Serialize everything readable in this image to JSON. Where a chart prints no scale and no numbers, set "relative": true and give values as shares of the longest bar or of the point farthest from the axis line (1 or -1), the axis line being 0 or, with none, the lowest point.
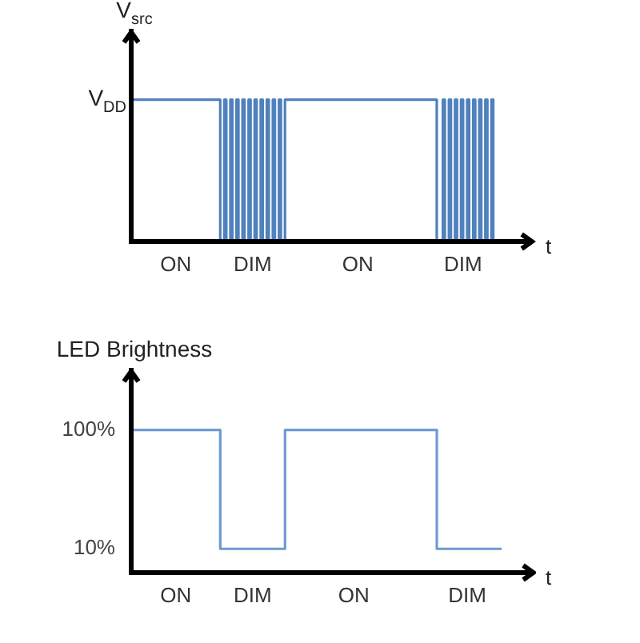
{
  "chart_data": [
    {
      "type": "step",
      "ylabel": "V$_{src}$",
      "xlabel": "t",
      "relative": true,
      "annotations": [
        "V$_{DD}$"
      ],
      "color": "#4f81bd",
      "categories": [
        null,
        null,
        null,
        null,
        null,
        null,
        null,
        null,
        null,
        null,
        null,
        null,
        null,
        null,
        null,
        null,
        null,
        null,
        null,
        null,
        null,
        null,
        "ON",
        null,
        null,
        null,
        null,
        null,
        null,
        null,
        null,
        null,
        null,
        null,
        null,
        null,
        null,
        null,
        null,
        null,
        null,
        null,
        null,
        null,
        null,
        null,
        null,
        null,
        null,
        null,
        null,
        null,
        null,
        null,
        null,
        null,
        null,
        null,
        null,
        null,
        "DIM",
        null,
        null,
        null,
        null,
        null,
        null,
        null,
        null,
        null,
        null,
        null,
        null,
        null,
        null,
        null,
        null,
        null,
        null,
        null,
        null,
        null,
        null,
        null,
        null,
        null,
        null,
        null,
        null,
        null,
        null,
        null,
        null,
        null,
        null,
        null,
        null,
        null,
        null,
        null,
        null,
        null,
        null,
        null,
        null,
        null,
        null,
        null,
        null,
        null,
        null,
        null,
        "ON",
        null,
        null,
        null,
        null,
        null,
        null,
        null,
        null,
        null,
        null,
        null,
        null,
        null,
        null,
        null,
        null,
        null,
        null,
        null,
        null,
        null,
        null,
        null,
        null,
        null,
        null,
        null,
        null,
        null,
        null,
        null,
        null,
        null,
        null,
        null,
        null,
        null,
        null,
        null,
        null,
        null,
        null,
        null,
        null,
        null,
        null,
        null,
        null,
        null,
        null,
        null,
        "DIM",
        null,
        null,
        null,
        null,
        null,
        null,
        null,
        null,
        null,
        null,
        null,
        null,
        null,
        null,
        null
      ],
      "values": [
        1,
        1,
        1,
        1,
        1,
        1,
        1,
        1,
        1,
        1,
        1,
        1,
        1,
        1,
        1,
        1,
        1,
        1,
        1,
        1,
        1,
        1,
        1,
        1,
        1,
        1,
        1,
        1,
        1,
        1,
        1,
        1,
        1,
        1,
        1,
        1,
        1,
        1,
        1,
        1,
        1,
        1,
        1,
        1,
        0,
        0,
        1,
        0,
        0,
        1,
        0,
        0,
        1,
        0,
        0,
        1,
        0,
        0,
        1,
        0,
        0,
        1,
        0,
        0,
        1,
        0,
        0,
        1,
        0,
        0,
        1,
        0,
        0,
        1,
        0,
        0,
        1,
        1,
        1,
        1,
        1,
        1,
        1,
        1,
        1,
        1,
        1,
        1,
        1,
        1,
        1,
        1,
        1,
        1,
        1,
        1,
        1,
        1,
        1,
        1,
        1,
        1,
        1,
        1,
        1,
        1,
        1,
        1,
        1,
        1,
        1,
        1,
        1,
        1,
        1,
        1,
        1,
        1,
        1,
        1,
        1,
        1,
        1,
        1,
        1,
        1,
        1,
        1,
        1,
        1,
        1,
        1,
        1,
        1,
        1,
        1,
        1,
        1,
        1,
        1,
        1,
        1,
        1,
        1,
        1,
        1,
        1,
        1,
        1,
        1,
        1,
        0,
        0,
        0,
        1,
        0,
        0,
        1,
        0,
        0,
        1,
        0,
        0,
        1,
        0,
        0,
        1,
        0,
        0,
        1,
        0,
        0,
        1,
        0,
        0,
        1,
        0,
        0,
        1,
        0
      ]
    },
    {
      "type": "step",
      "ylabel": "LED Brightness",
      "xlabel": "t",
      "color": "#6f9bd0",
      "ylim": [
        -8,
        147
      ],
      "yticks": [
        {
          "value": 10,
          "label": "10%"
        },
        {
          "value": 100,
          "label": "100%"
        }
      ],
      "categories": [
        null,
        null,
        null,
        null,
        null,
        null,
        null,
        null,
        null,
        null,
        null,
        null,
        null,
        null,
        null,
        null,
        null,
        null,
        null,
        null,
        null,
        null,
        "ON",
        null,
        null,
        null,
        null,
        null,
        null,
        null,
        null,
        null,
        null,
        null,
        null,
        null,
        null,
        null,
        null,
        null,
        null,
        null,
        null,
        null,
        null,
        null,
        null,
        null,
        null,
        null,
        null,
        null,
        null,
        null,
        null,
        null,
        null,
        null,
        null,
        null,
        "DIM",
        null,
        null,
        null,
        null,
        null,
        null,
        null,
        null,
        null,
        null,
        null,
        null,
        null,
        null,
        null,
        null,
        null,
        null,
        null,
        null,
        null,
        null,
        null,
        null,
        null,
        null,
        null,
        null,
        null,
        null,
        null,
        null,
        null,
        null,
        null,
        null,
        null,
        null,
        null,
        null,
        null,
        null,
        null,
        null,
        null,
        null,
        null,
        null,
        null,
        "ON",
        null,
        null,
        null,
        null,
        null,
        null,
        null,
        null,
        null,
        null,
        null,
        null,
        null,
        null,
        null,
        null,
        null,
        null,
        null,
        null,
        null,
        null,
        null,
        null,
        null,
        null,
        null,
        null,
        null,
        null,
        null,
        null,
        null,
        null,
        null,
        null,
        null,
        null,
        null,
        null,
        null,
        null,
        null,
        null,
        null,
        null,
        null,
        null,
        null,
        null,
        null,
        null,
        null,
        null,
        null,
        "DIM",
        null,
        null,
        null,
        null,
        null,
        null,
        null,
        null,
        null,
        null,
        null,
        null,
        null,
        null,
        null,
        null,
        null
      ],
      "values": [
        100,
        100,
        100,
        100,
        100,
        100,
        100,
        100,
        100,
        100,
        100,
        100,
        100,
        100,
        100,
        100,
        100,
        100,
        100,
        100,
        100,
        100,
        100,
        100,
        100,
        100,
        100,
        100,
        100,
        100,
        100,
        100,
        100,
        100,
        100,
        100,
        100,
        100,
        100,
        100,
        100,
        100,
        100,
        100,
        10,
        10,
        10,
        10,
        10,
        10,
        10,
        10,
        10,
        10,
        10,
        10,
        10,
        10,
        10,
        10,
        10,
        10,
        10,
        10,
        10,
        10,
        10,
        10,
        10,
        10,
        10,
        10,
        10,
        10,
        10,
        10,
        100,
        100,
        100,
        100,
        100,
        100,
        100,
        100,
        100,
        100,
        100,
        100,
        100,
        100,
        100,
        100,
        100,
        100,
        100,
        100,
        100,
        100,
        100,
        100,
        100,
        100,
        100,
        100,
        100,
        100,
        100,
        100,
        100,
        100,
        100,
        100,
        100,
        100,
        100,
        100,
        100,
        100,
        100,
        100,
        100,
        100,
        100,
        100,
        100,
        100,
        100,
        100,
        100,
        100,
        100,
        100,
        100,
        100,
        100,
        100,
        100,
        100,
        100,
        100,
        100,
        100,
        100,
        100,
        100,
        100,
        100,
        100,
        100,
        100,
        100,
        10,
        10,
        10,
        10,
        10,
        10,
        10,
        10,
        10,
        10,
        10,
        10,
        10,
        10,
        10,
        10,
        10,
        10,
        10,
        10,
        10,
        10,
        10,
        10,
        10,
        10,
        10,
        10,
        10,
        10,
        10,
        10,
        10
      ]
    }
  ]
}
